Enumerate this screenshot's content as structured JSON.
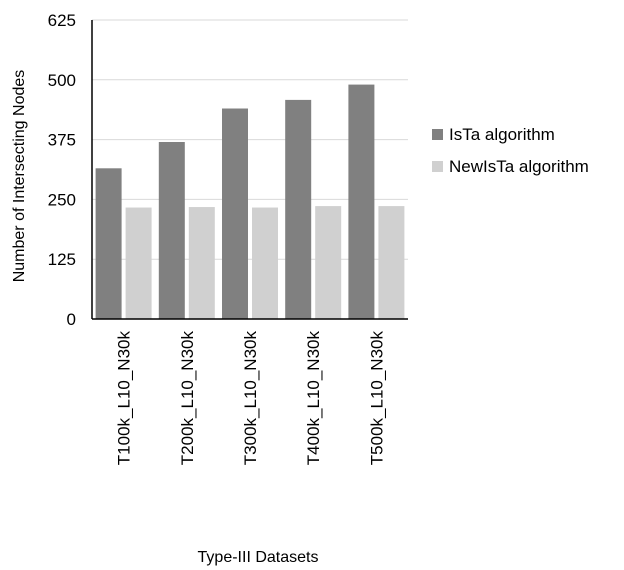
{
  "chart_data": {
    "type": "bar",
    "title": "",
    "xlabel": "Type-III Datasets",
    "ylabel": "Number of Intersecting Nodes",
    "ylim": [
      0,
      625
    ],
    "yticks": [
      "0",
      "125",
      "250",
      "375",
      "500",
      "625"
    ],
    "grid": true,
    "legend_position": "right",
    "categories": [
      "T100k_L10_N30k",
      "T200k_L10_N30k",
      "T300k_L10_N30k",
      "T400k_L10_N30k",
      "T500k_L10_N30k"
    ],
    "series": [
      {
        "name": "IsTa algorithm",
        "color": "#808080",
        "values": [
          315,
          370,
          440,
          458,
          490
        ]
      },
      {
        "name": "NewIsTa algorithm",
        "color": "#d0d0d0",
        "values": [
          233,
          234,
          233,
          236,
          236
        ]
      }
    ]
  }
}
